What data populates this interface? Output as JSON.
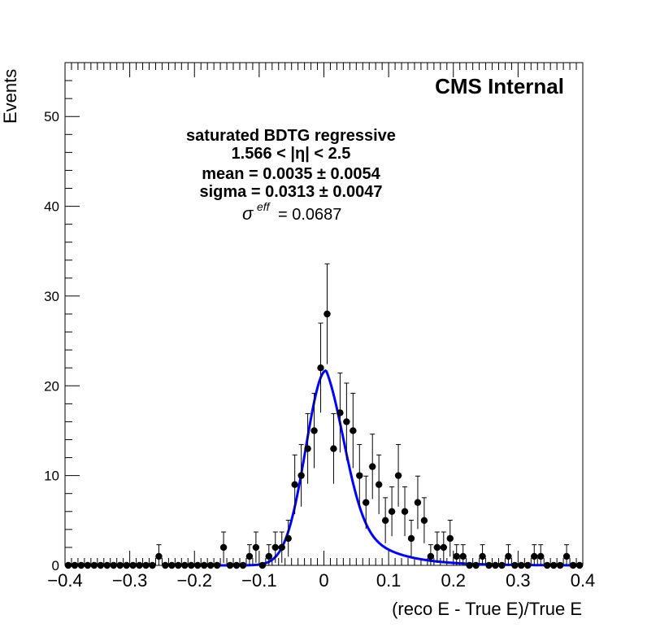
{
  "chart_data": {
    "type": "scatter",
    "title": "",
    "xlabel": "(reco E - True E)/True E",
    "ylabel": "Events",
    "xlim": [
      -0.4,
      0.4
    ],
    "ylim": [
      0,
      56
    ],
    "x_ticks": [
      "−0.4",
      "−0.3",
      "−0.2",
      "−0.1",
      "0",
      "0.1",
      "0.2",
      "0.3",
      "0.4"
    ],
    "y_ticks": [
      "0",
      "10",
      "20",
      "30",
      "40",
      "50"
    ],
    "watermark": "CMS Internal",
    "annotations": {
      "line1": "saturated BDTG regressive",
      "line2": "1.566 < |η| < 2.5",
      "line3": "mean = 0.0035 ± 0.0054",
      "line4": "sigma = 0.0313 ± 0.0047",
      "sigma_symbol": "σ",
      "sigma_sup": "eff",
      "sigma_value": "= 0.0687"
    },
    "colors": {
      "points": "#000000",
      "fit": "#0000ff"
    },
    "series": [
      {
        "name": "data",
        "x": [
          -0.395,
          -0.385,
          -0.375,
          -0.365,
          -0.355,
          -0.345,
          -0.335,
          -0.325,
          -0.315,
          -0.305,
          -0.295,
          -0.285,
          -0.275,
          -0.265,
          -0.255,
          -0.245,
          -0.235,
          -0.225,
          -0.215,
          -0.205,
          -0.195,
          -0.185,
          -0.175,
          -0.165,
          -0.155,
          -0.145,
          -0.135,
          -0.125,
          -0.115,
          -0.105,
          -0.095,
          -0.085,
          -0.075,
          -0.065,
          -0.055,
          -0.045,
          -0.035,
          -0.025,
          -0.015,
          -0.005,
          0.005,
          0.015,
          0.025,
          0.035,
          0.045,
          0.055,
          0.065,
          0.075,
          0.085,
          0.095,
          0.105,
          0.115,
          0.125,
          0.135,
          0.145,
          0.155,
          0.165,
          0.175,
          0.185,
          0.195,
          0.205,
          0.215,
          0.225,
          0.235,
          0.245,
          0.255,
          0.265,
          0.275,
          0.285,
          0.295,
          0.305,
          0.315,
          0.325,
          0.335,
          0.345,
          0.355,
          0.365,
          0.375,
          0.385,
          0.395
        ],
        "y": [
          0,
          0,
          0,
          0,
          0,
          0,
          0,
          0,
          0,
          0,
          0,
          0,
          0,
          0,
          1,
          0,
          0,
          0,
          0,
          0,
          0,
          0,
          0,
          0,
          2,
          0,
          0,
          0,
          1,
          2,
          0,
          1,
          2,
          2,
          3,
          9,
          10,
          13,
          15,
          22,
          28,
          13,
          17,
          16,
          15,
          10,
          7,
          11,
          9,
          5,
          6,
          10,
          6,
          3,
          7,
          5,
          1,
          2,
          2,
          3,
          1,
          1,
          0,
          0,
          1,
          0,
          0,
          0,
          1,
          0,
          0,
          0,
          1,
          1,
          0,
          0,
          0,
          1,
          0,
          0
        ]
      },
      {
        "name": "fit",
        "type": "line",
        "peak_x": 0.0035,
        "peak_y": 21.7,
        "sigma_left": 0.0313,
        "tail_right": 0.055
      }
    ]
  }
}
